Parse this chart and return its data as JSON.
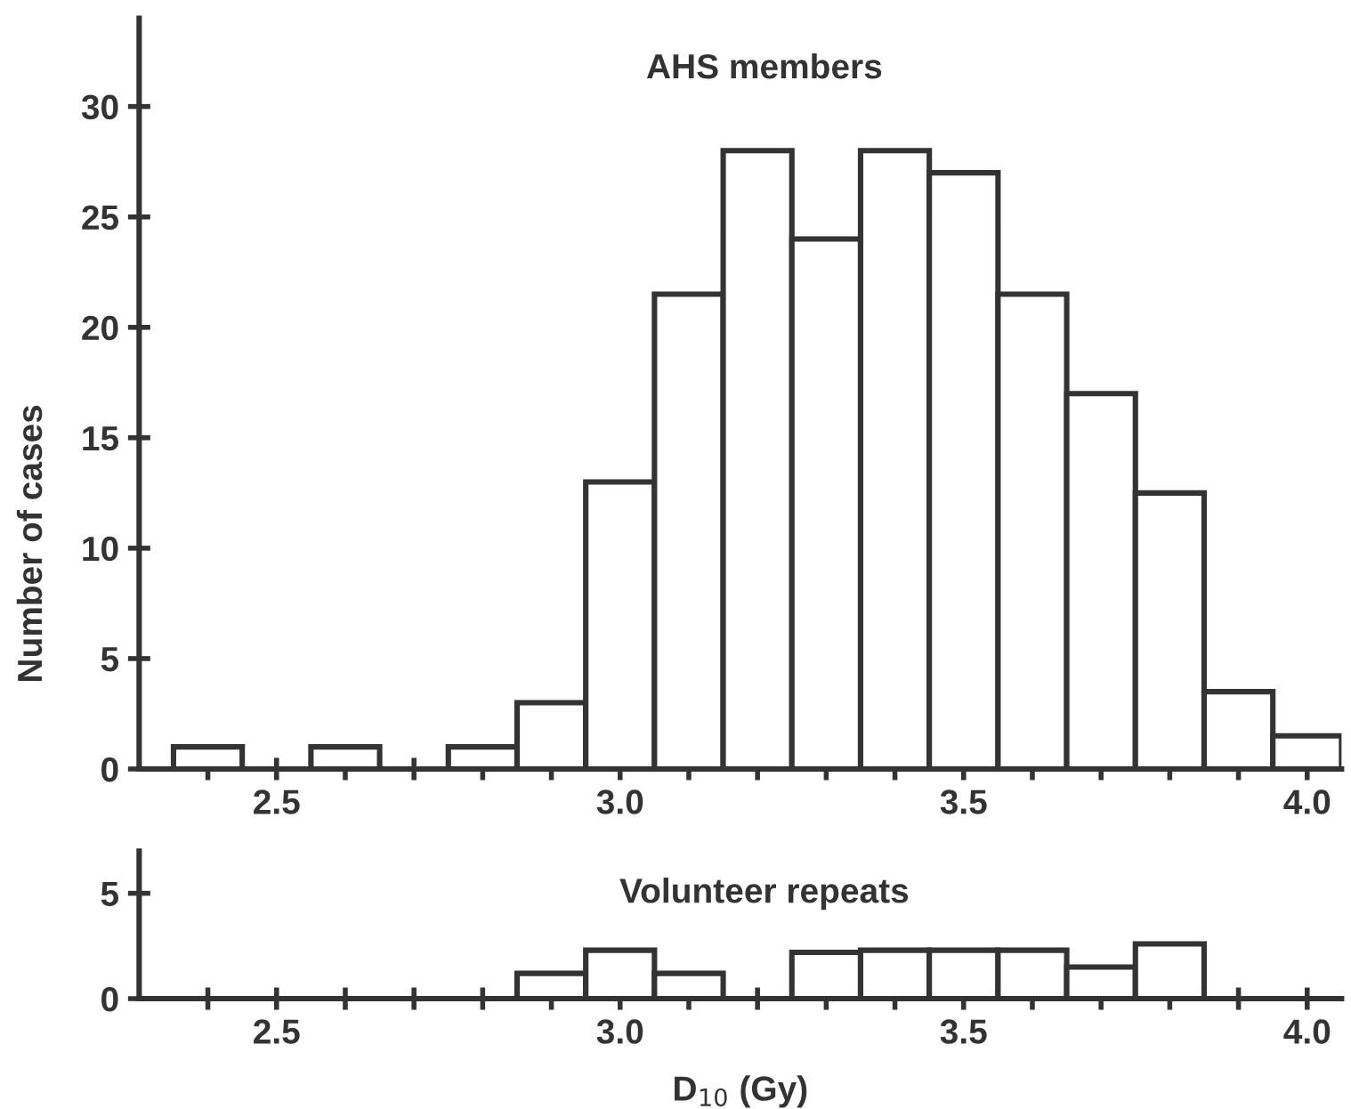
{
  "chart_data": [
    {
      "type": "histogram",
      "title": "AHS members",
      "ylabel": "Number of cases",
      "bins": [
        2.35,
        2.45,
        2.55,
        2.65,
        2.75,
        2.85,
        2.95,
        3.05,
        3.15,
        3.25,
        3.35,
        3.45,
        3.55,
        3.65,
        3.75,
        3.85,
        3.95,
        4.05
      ],
      "values": [
        1,
        0,
        1,
        0,
        1,
        3,
        13,
        21.5,
        28,
        24,
        28,
        27,
        21.5,
        17,
        12.5,
        3.5,
        1.5
      ],
      "color": "#ffffff",
      "xlim": [
        2.3,
        4.05
      ],
      "ylim": [
        0,
        34
      ],
      "xticks": [
        {
          "value": 2.4,
          "label": null
        },
        {
          "value": 2.5,
          "label": "2.5"
        },
        {
          "value": 2.6,
          "label": null
        },
        {
          "value": 2.7,
          "label": null
        },
        {
          "value": 2.8,
          "label": null
        },
        {
          "value": 2.9,
          "label": null
        },
        {
          "value": 3,
          "label": "3.0"
        },
        {
          "value": 3.1,
          "label": null
        },
        {
          "value": 3.2,
          "label": null
        },
        {
          "value": 3.3,
          "label": null
        },
        {
          "value": 3.4,
          "label": null
        },
        {
          "value": 3.5,
          "label": "3.5"
        },
        {
          "value": 3.6,
          "label": null
        },
        {
          "value": 3.7,
          "label": null
        },
        {
          "value": 3.8,
          "label": null
        },
        {
          "value": 3.9,
          "label": null
        },
        {
          "value": 4,
          "label": "4.0"
        }
      ],
      "yticks": [
        0,
        5,
        10,
        15,
        20,
        25,
        30
      ],
      "grid": false,
      "legend": false
    },
    {
      "type": "histogram",
      "title": "Volunteer repeats",
      "xlabel": "D$_{10}$ (Gy)",
      "bins": [
        2.35,
        2.45,
        2.55,
        2.65,
        2.75,
        2.85,
        2.95,
        3.05,
        3.15,
        3.25,
        3.35,
        3.45,
        3.55,
        3.65,
        3.75,
        3.85,
        3.95,
        4.05
      ],
      "values": [
        0,
        0,
        0,
        0,
        0,
        1.2,
        2.3,
        1.2,
        0,
        2.2,
        2.3,
        2.3,
        2.3,
        1.5,
        2.6,
        0,
        0
      ],
      "color": "#ffffff",
      "xlim": [
        2.3,
        4.05
      ],
      "ylim": [
        0,
        7
      ],
      "xticks": [
        {
          "value": 2.4,
          "label": null
        },
        {
          "value": 2.5,
          "label": "2.5"
        },
        {
          "value": 2.6,
          "label": null
        },
        {
          "value": 2.7,
          "label": null
        },
        {
          "value": 2.8,
          "label": null
        },
        {
          "value": 2.9,
          "label": null
        },
        {
          "value": 3,
          "label": "3.0"
        },
        {
          "value": 3.1,
          "label": null
        },
        {
          "value": 3.2,
          "label": null
        },
        {
          "value": 3.3,
          "label": null
        },
        {
          "value": 3.4,
          "label": null
        },
        {
          "value": 3.5,
          "label": "3.5"
        },
        {
          "value": 3.6,
          "label": null
        },
        {
          "value": 3.7,
          "label": null
        },
        {
          "value": 3.8,
          "label": null
        },
        {
          "value": 3.9,
          "label": null
        },
        {
          "value": 4,
          "label": "4.0"
        }
      ],
      "yticks": [
        0,
        5
      ],
      "grid": false,
      "legend": false
    }
  ]
}
